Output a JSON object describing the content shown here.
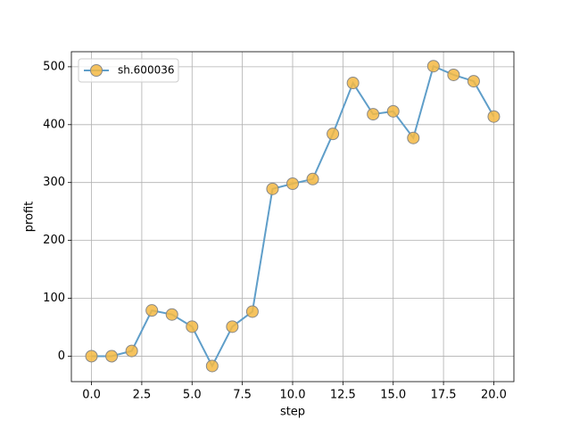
{
  "chart_data": {
    "type": "line",
    "x": [
      0,
      1,
      2,
      3,
      4,
      5,
      6,
      7,
      8,
      9,
      10,
      11,
      12,
      13,
      14,
      15,
      16,
      17,
      18,
      19,
      20
    ],
    "series": [
      {
        "name": "sh.600036",
        "color": "#5f9ec9",
        "marker_color": "#f5b942",
        "values": [
          0,
          0,
          9,
          79,
          72,
          51,
          -17,
          51,
          77,
          289,
          298,
          306,
          384,
          472,
          418,
          423,
          377,
          501,
          486,
          475,
          414
        ]
      }
    ],
    "xlabel": "step",
    "ylabel": "profit",
    "xlim": [
      -1,
      21
    ],
    "xticks": [
      {
        "value": 0,
        "label": "0.0"
      },
      2.5,
      {
        "value": 5,
        "label": "5.0"
      },
      7.5,
      {
        "value": 10,
        "label": "10.0"
      },
      12.5,
      {
        "value": 15,
        "label": "15.0"
      },
      17.5,
      {
        "value": 20,
        "label": "20.0"
      }
    ],
    "ylim": [
      -44,
      526
    ],
    "yticks": [
      0,
      100,
      200,
      300,
      400,
      500
    ],
    "grid": true,
    "legend": "upper-left"
  }
}
